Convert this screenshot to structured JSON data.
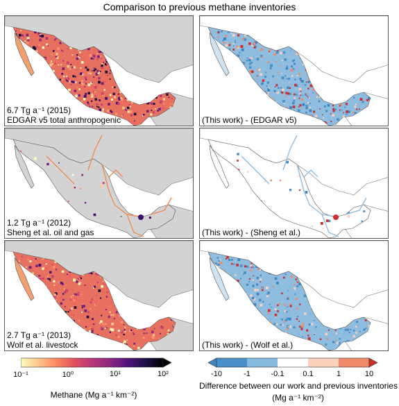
{
  "title": "Comparison to previous methane inventories",
  "panels": [
    {
      "id": "edgar-abs",
      "line1": "6.7 Tg a⁻¹ (2015)",
      "line2": "EDGAR v5 total anthropogenic",
      "kind": "absolute",
      "density": "high"
    },
    {
      "id": "edgar-diff",
      "line1": "",
      "line2": "(This work) - (EDGAR v5)",
      "kind": "difference",
      "density": "high"
    },
    {
      "id": "sheng-abs",
      "line1": "1.2 Tg a⁻¹ (2012)",
      "line2": "Sheng et al. oil and gas",
      "kind": "absolute",
      "density": "sparse"
    },
    {
      "id": "sheng-diff",
      "line1": "",
      "line2": "(This work) - (Sheng et al.)",
      "kind": "difference",
      "density": "sparse"
    },
    {
      "id": "wolf-abs",
      "line1": "2.7 Tg a⁻¹ (2013)",
      "line2": "Wolf et al. livestock",
      "kind": "absolute",
      "density": "medium"
    },
    {
      "id": "wolf-diff",
      "line1": "",
      "line2": "(This work) - (Wolf et al.)",
      "kind": "difference",
      "density": "medium"
    }
  ],
  "colorbar_left": {
    "ticks": [
      "10⁻¹",
      "10⁰",
      "10¹",
      "10²"
    ],
    "label": "Methane (Mg a⁻¹ km⁻²)",
    "scale": "log",
    "colors": [
      "#fcfdbf",
      "#fec488",
      "#fc8961",
      "#e34f5f",
      "#b73779",
      "#8c2981",
      "#51127c",
      "#1d1147",
      "#000004"
    ]
  },
  "colorbar_right": {
    "ticks": [
      "-10",
      "-1",
      "-0.1",
      "0.1",
      "1",
      "10"
    ],
    "label_line1": "Difference between our work and previous inventories",
    "label_line2": "(Mg a⁻¹ km⁻²)",
    "colors": [
      "#3b85c4",
      "#6aa8d6",
      "#c6dbef",
      "#ffffff",
      "#fcd3c1",
      "#f08a6c",
      "#c9302c"
    ]
  },
  "colors": {
    "land_background": "#d3d3d3",
    "border": "#555555"
  }
}
